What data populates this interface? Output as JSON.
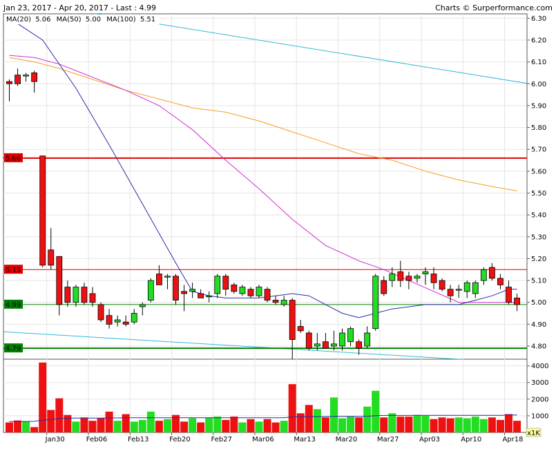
{
  "header": {
    "title": "Jan 23, 2017 - Apr 20, 2017 - Last : 4.99",
    "credit": "Charts © Surperformance.com"
  },
  "legend": [
    {
      "label": "MA(20)",
      "value": "5.06",
      "color": "#2a2aa8"
    },
    {
      "label": "MA(50)",
      "value": "5.00",
      "color": "#d22ad2"
    },
    {
      "label": "MA(100)",
      "value": "5.51",
      "color": "#f0a020"
    }
  ],
  "volume_unit": "x1K",
  "chart_data": {
    "type": "candlestick",
    "price_ylim": [
      4.74,
      6.32
    ],
    "price_ticks": [
      "6.30",
      "6.20",
      "6.10",
      "6.00",
      "5.90",
      "5.80",
      "5.70",
      "5.60",
      "5.50",
      "5.40",
      "5.30",
      "5.20",
      "5.10",
      "5.00",
      "4.90",
      "4.80"
    ],
    "volume_ylim": [
      0,
      4400
    ],
    "volume_ticks": [
      "4000",
      "3000",
      "2000",
      "1000"
    ],
    "x_labels": [
      {
        "label": "Jan30",
        "index": 5
      },
      {
        "label": "Feb06",
        "index": 10
      },
      {
        "label": "Feb13",
        "index": 15
      },
      {
        "label": "Feb20",
        "index": 20
      },
      {
        "label": "Feb27",
        "index": 25
      },
      {
        "label": "Mar06",
        "index": 30
      },
      {
        "label": "Mar13",
        "index": 35
      },
      {
        "label": "Mar20",
        "index": 40
      },
      {
        "label": "Mar27",
        "index": 45
      },
      {
        "label": "Apr03",
        "index": 50
      },
      {
        "label": "Apr10",
        "index": 55
      },
      {
        "label": "Apr18",
        "index": 60
      }
    ],
    "levels": [
      {
        "label": "5.66",
        "value": 5.66,
        "color": "#e00000",
        "width": 2
      },
      {
        "label": "5.15",
        "value": 5.15,
        "color": "#e00000",
        "width": 1
      },
      {
        "label": "4.99",
        "value": 4.99,
        "color": "#008000",
        "width": 1
      },
      {
        "label": "4.79",
        "value": 4.79,
        "color": "#008000",
        "width": 2
      }
    ],
    "candles": [
      {
        "o": 6.01,
        "h": 6.02,
        "l": 5.92,
        "c": 6.0,
        "v": 600
      },
      {
        "o": 6.04,
        "h": 6.07,
        "l": 5.99,
        "c": 6.0,
        "v": 720
      },
      {
        "o": 6.04,
        "h": 6.05,
        "l": 6.01,
        "c": 6.04,
        "v": 650
      },
      {
        "o": 6.05,
        "h": 6.06,
        "l": 5.96,
        "c": 6.01,
        "v": 320
      },
      {
        "o": 5.67,
        "h": 5.67,
        "l": 5.16,
        "c": 5.17,
        "v": 4200
      },
      {
        "o": 5.24,
        "h": 5.34,
        "l": 5.15,
        "c": 5.17,
        "v": 1350
      },
      {
        "o": 5.21,
        "h": 5.21,
        "l": 4.94,
        "c": 4.99,
        "v": 2050
      },
      {
        "o": 5.07,
        "h": 5.1,
        "l": 4.98,
        "c": 5.0,
        "v": 1050
      },
      {
        "o": 5.0,
        "h": 5.08,
        "l": 4.98,
        "c": 5.07,
        "v": 650
      },
      {
        "o": 5.07,
        "h": 5.09,
        "l": 4.99,
        "c": 5.0,
        "v": 900
      },
      {
        "o": 5.04,
        "h": 5.07,
        "l": 4.98,
        "c": 5.0,
        "v": 700
      },
      {
        "o": 4.99,
        "h": 5.0,
        "l": 4.91,
        "c": 4.92,
        "v": 850
      },
      {
        "o": 4.94,
        "h": 4.97,
        "l": 4.88,
        "c": 4.9,
        "v": 1250
      },
      {
        "o": 4.91,
        "h": 4.94,
        "l": 4.89,
        "c": 4.92,
        "v": 700
      },
      {
        "o": 4.91,
        "h": 4.94,
        "l": 4.89,
        "c": 4.9,
        "v": 1100
      },
      {
        "o": 4.91,
        "h": 4.97,
        "l": 4.9,
        "c": 4.95,
        "v": 650
      },
      {
        "o": 4.98,
        "h": 5.0,
        "l": 4.94,
        "c": 4.99,
        "v": 750
      },
      {
        "o": 5.01,
        "h": 5.11,
        "l": 5.0,
        "c": 5.1,
        "v": 1250
      },
      {
        "o": 5.13,
        "h": 5.17,
        "l": 5.08,
        "c": 5.08,
        "v": 700
      },
      {
        "o": 5.12,
        "h": 5.13,
        "l": 5.06,
        "c": 5.12,
        "v": 800
      },
      {
        "o": 5.12,
        "h": 5.13,
        "l": 4.99,
        "c": 5.01,
        "v": 1050
      },
      {
        "o": 5.05,
        "h": 5.08,
        "l": 4.96,
        "c": 5.04,
        "v": 650
      },
      {
        "o": 5.05,
        "h": 5.09,
        "l": 5.02,
        "c": 5.06,
        "v": 850
      },
      {
        "o": 5.04,
        "h": 5.06,
        "l": 5.02,
        "c": 5.02,
        "v": 600
      },
      {
        "o": 5.03,
        "h": 5.05,
        "l": 5.0,
        "c": 5.03,
        "v": 900
      },
      {
        "o": 5.04,
        "h": 5.13,
        "l": 5.02,
        "c": 5.12,
        "v": 950
      },
      {
        "o": 5.12,
        "h": 5.13,
        "l": 5.03,
        "c": 5.06,
        "v": 750
      },
      {
        "o": 5.08,
        "h": 5.09,
        "l": 5.04,
        "c": 5.05,
        "v": 950
      },
      {
        "o": 5.04,
        "h": 5.08,
        "l": 5.03,
        "c": 5.07,
        "v": 600
      },
      {
        "o": 5.06,
        "h": 5.07,
        "l": 5.02,
        "c": 5.03,
        "v": 800
      },
      {
        "o": 5.03,
        "h": 5.08,
        "l": 5.02,
        "c": 5.07,
        "v": 650
      },
      {
        "o": 5.06,
        "h": 5.07,
        "l": 5.0,
        "c": 5.01,
        "v": 800
      },
      {
        "o": 5.01,
        "h": 5.03,
        "l": 4.99,
        "c": 5.0,
        "v": 600
      },
      {
        "o": 4.99,
        "h": 5.03,
        "l": 4.98,
        "c": 5.01,
        "v": 700
      },
      {
        "o": 5.01,
        "h": 5.02,
        "l": 4.74,
        "c": 4.83,
        "v": 2900
      },
      {
        "o": 4.89,
        "h": 4.92,
        "l": 4.86,
        "c": 4.87,
        "v": 1150
      },
      {
        "o": 4.86,
        "h": 4.87,
        "l": 4.78,
        "c": 4.79,
        "v": 1650
      },
      {
        "o": 4.8,
        "h": 4.86,
        "l": 4.78,
        "c": 4.81,
        "v": 1400
      },
      {
        "o": 4.82,
        "h": 4.86,
        "l": 4.79,
        "c": 4.79,
        "v": 900
      },
      {
        "o": 4.8,
        "h": 4.87,
        "l": 4.78,
        "c": 4.81,
        "v": 2100
      },
      {
        "o": 4.8,
        "h": 4.88,
        "l": 4.78,
        "c": 4.86,
        "v": 850
      },
      {
        "o": 4.82,
        "h": 4.89,
        "l": 4.8,
        "c": 4.88,
        "v": 950
      },
      {
        "o": 4.82,
        "h": 4.83,
        "l": 4.76,
        "c": 4.79,
        "v": 900
      },
      {
        "o": 4.8,
        "h": 4.89,
        "l": 4.79,
        "c": 4.86,
        "v": 1550
      },
      {
        "o": 4.88,
        "h": 5.13,
        "l": 4.87,
        "c": 5.12,
        "v": 2500
      },
      {
        "o": 5.1,
        "h": 5.12,
        "l": 5.03,
        "c": 5.04,
        "v": 900
      },
      {
        "o": 5.1,
        "h": 5.16,
        "l": 5.07,
        "c": 5.13,
        "v": 1150
      },
      {
        "o": 5.14,
        "h": 5.19,
        "l": 5.07,
        "c": 5.1,
        "v": 950
      },
      {
        "o": 5.12,
        "h": 5.14,
        "l": 5.06,
        "c": 5.1,
        "v": 950
      },
      {
        "o": 5.11,
        "h": 5.13,
        "l": 5.09,
        "c": 5.12,
        "v": 1050
      },
      {
        "o": 5.13,
        "h": 5.16,
        "l": 5.08,
        "c": 5.14,
        "v": 1000
      },
      {
        "o": 5.13,
        "h": 5.16,
        "l": 5.06,
        "c": 5.09,
        "v": 800
      },
      {
        "o": 5.1,
        "h": 5.11,
        "l": 5.05,
        "c": 5.06,
        "v": 900
      },
      {
        "o": 5.06,
        "h": 5.08,
        "l": 5.0,
        "c": 5.03,
        "v": 850
      },
      {
        "o": 5.06,
        "h": 5.08,
        "l": 5.02,
        "c": 5.06,
        "v": 900
      },
      {
        "o": 5.05,
        "h": 5.1,
        "l": 5.02,
        "c": 5.09,
        "v": 850
      },
      {
        "o": 5.04,
        "h": 5.1,
        "l": 5.02,
        "c": 5.09,
        "v": 950
      },
      {
        "o": 5.1,
        "h": 5.16,
        "l": 5.08,
        "c": 5.15,
        "v": 800
      },
      {
        "o": 5.16,
        "h": 5.18,
        "l": 5.1,
        "c": 5.11,
        "v": 900
      },
      {
        "o": 5.11,
        "h": 5.13,
        "l": 5.06,
        "c": 5.08,
        "v": 750
      },
      {
        "o": 5.07,
        "h": 5.1,
        "l": 4.99,
        "c": 5.0,
        "v": 1100
      },
      {
        "o": 5.02,
        "h": 5.04,
        "l": 4.96,
        "c": 4.99,
        "v": 700
      }
    ],
    "volume_avg": [
      650,
      650,
      660,
      670,
      740,
      780,
      830,
      850,
      860,
      860,
      860,
      860,
      870,
      870,
      880,
      880,
      880,
      880,
      880,
      880,
      880,
      880,
      880,
      880,
      880,
      880,
      880,
      880,
      880,
      880,
      880,
      880,
      880,
      880,
      930,
      940,
      950,
      950,
      950,
      960,
      960,
      960,
      960,
      970,
      1010,
      1020,
      1020,
      1020,
      1020,
      1030,
      1030,
      1030,
      1030,
      1030,
      1030,
      1030,
      1030,
      1030,
      1030,
      1030,
      1040,
      1050
    ],
    "ma20": [
      [
        0,
        6.3
      ],
      [
        4,
        6.2
      ],
      [
        8,
        5.98
      ],
      [
        12,
        5.72
      ],
      [
        16,
        5.45
      ],
      [
        20,
        5.18
      ],
      [
        22,
        5.05
      ],
      [
        24,
        5.03
      ],
      [
        26,
        5.02
      ],
      [
        28,
        5.02
      ],
      [
        30,
        5.02
      ],
      [
        32,
        5.03
      ],
      [
        34,
        5.04
      ],
      [
        36,
        5.03
      ],
      [
        38,
        4.99
      ],
      [
        40,
        4.95
      ],
      [
        42,
        4.93
      ],
      [
        44,
        4.95
      ],
      [
        46,
        4.97
      ],
      [
        48,
        4.98
      ],
      [
        50,
        4.99
      ],
      [
        52,
        4.99
      ],
      [
        54,
        4.99
      ],
      [
        56,
        5.01
      ],
      [
        58,
        5.03
      ],
      [
        60,
        5.06
      ],
      [
        61,
        5.06
      ]
    ],
    "ma50": [
      [
        0,
        6.13
      ],
      [
        3,
        6.12
      ],
      [
        6,
        6.09
      ],
      [
        10,
        6.03
      ],
      [
        14,
        5.97
      ],
      [
        18,
        5.9
      ],
      [
        22,
        5.79
      ],
      [
        26,
        5.65
      ],
      [
        30,
        5.52
      ],
      [
        34,
        5.38
      ],
      [
        38,
        5.26
      ],
      [
        42,
        5.19
      ],
      [
        45,
        5.15
      ],
      [
        48,
        5.1
      ],
      [
        51,
        5.05
      ],
      [
        54,
        5.0
      ],
      [
        57,
        5.0
      ],
      [
        60,
        5.0
      ],
      [
        61,
        5.0
      ]
    ],
    "ma100": [
      [
        0,
        6.12
      ],
      [
        3,
        6.1
      ],
      [
        6,
        6.07
      ],
      [
        10,
        6.02
      ],
      [
        14,
        5.97
      ],
      [
        18,
        5.93
      ],
      [
        22,
        5.89
      ],
      [
        26,
        5.87
      ],
      [
        30,
        5.83
      ],
      [
        34,
        5.78
      ],
      [
        38,
        5.73
      ],
      [
        42,
        5.68
      ],
      [
        46,
        5.65
      ],
      [
        50,
        5.6
      ],
      [
        54,
        5.56
      ],
      [
        58,
        5.53
      ],
      [
        61,
        5.51
      ]
    ],
    "trend_lines": [
      {
        "from": [
          -2.65,
          6.4
        ],
        "to": [
          62.5,
          6.0
        ],
        "color": "#30b8d8"
      },
      {
        "from": [
          -2.65,
          4.87
        ],
        "to": [
          58.4,
          4.73
        ],
        "color": "#30b8d8"
      }
    ]
  }
}
